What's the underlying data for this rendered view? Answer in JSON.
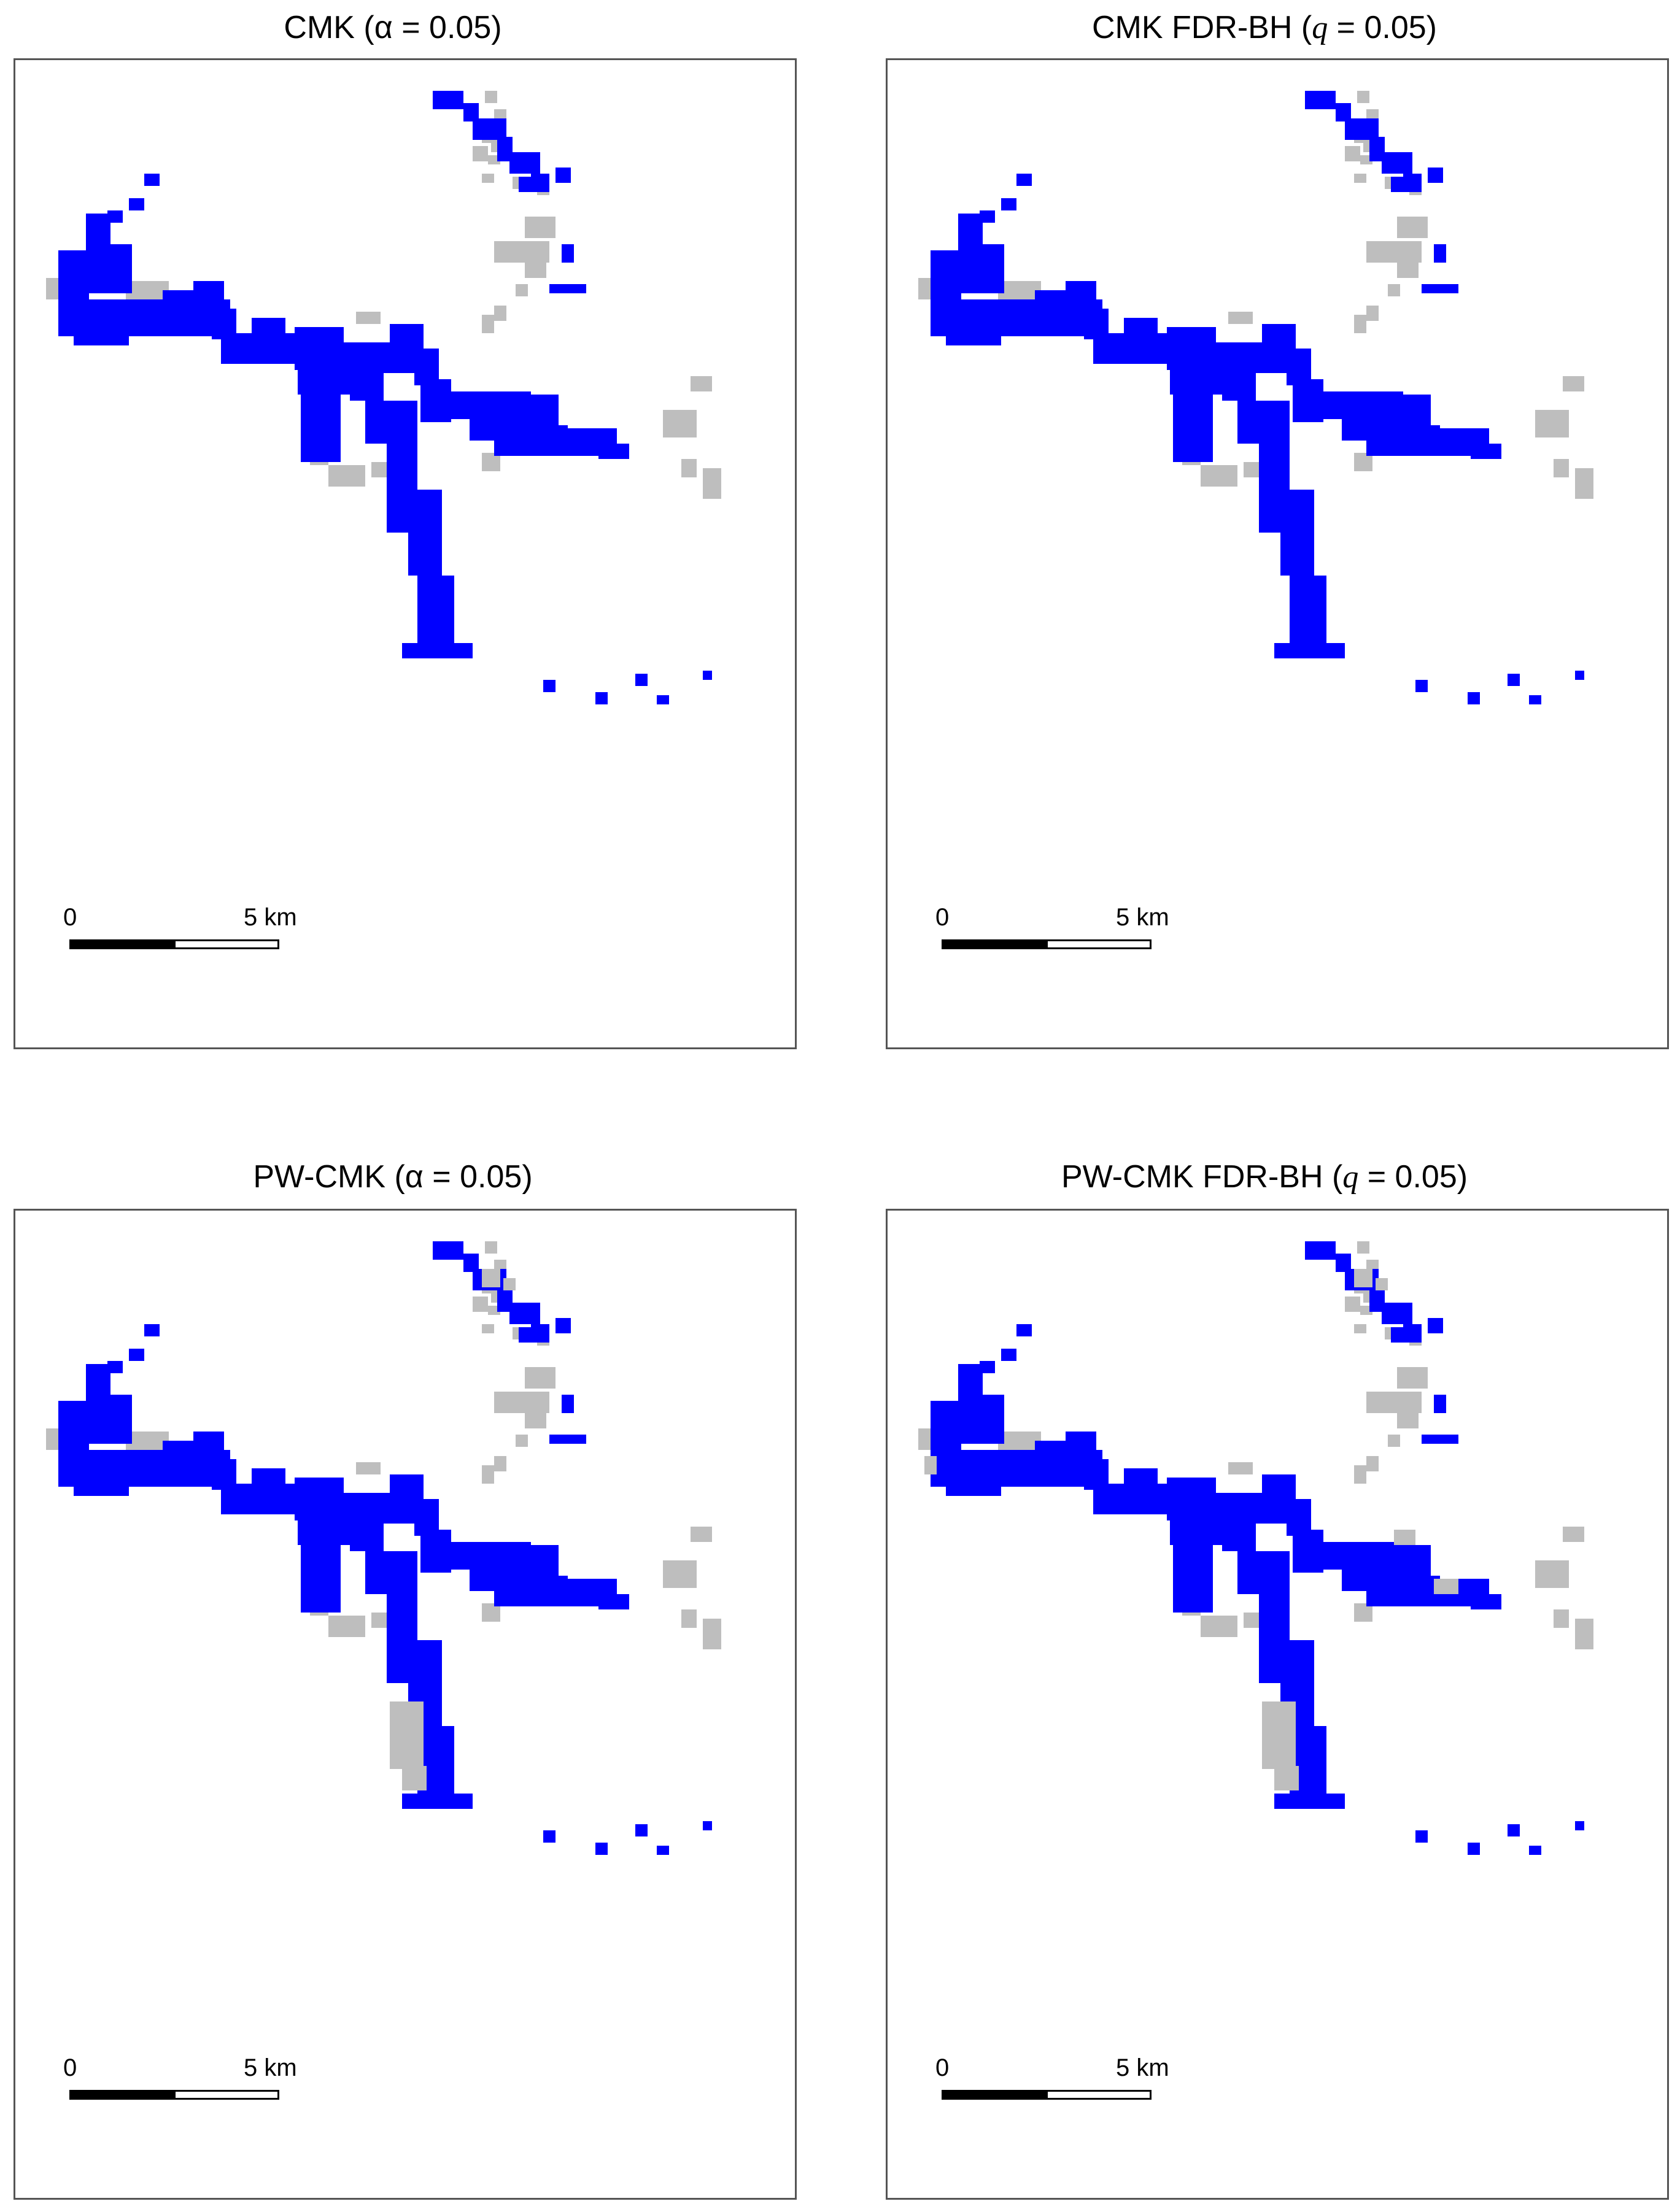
{
  "colors": {
    "significant": "#0000ff",
    "not_significant": "#bebebe",
    "frame": "#555555"
  },
  "panels": [
    {
      "title_main": "CMK (",
      "title_sym": "α",
      "title_sym_italic": false,
      "title_rest": " = 0.05)"
    },
    {
      "title_main": "CMK FDR-BH (",
      "title_sym": "q",
      "title_sym_italic": true,
      "title_rest": " = 0.05)"
    },
    {
      "title_main": "PW-CMK (",
      "title_sym": "α",
      "title_sym_italic": false,
      "title_rest": " = 0.05)"
    },
    {
      "title_main": "PW-CMK FDR-BH (",
      "title_sym": "q",
      "title_sym_italic": true,
      "title_rest": " = 0.05)"
    }
  ],
  "scalebar": {
    "label_start": "0",
    "label_end": "5 km"
  }
}
